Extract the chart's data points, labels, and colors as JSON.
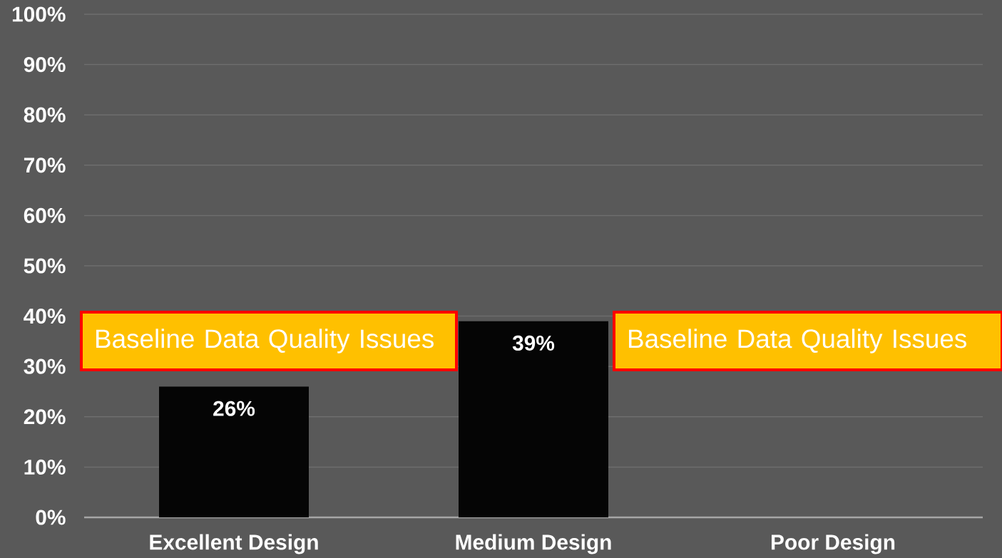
{
  "chart_data": {
    "type": "bar",
    "categories": [
      "Excellent Design",
      "Medium Design",
      "Poor Design"
    ],
    "values": [
      26,
      39,
      null
    ],
    "color": "#050505",
    "value_labels": [
      "26%",
      "39%",
      null
    ],
    "ylim": [
      0,
      100
    ],
    "yticks": [
      {
        "value": 0,
        "label": "0%"
      },
      {
        "value": 10,
        "label": "10%"
      },
      {
        "value": 20,
        "label": "20%"
      },
      {
        "value": 30,
        "label": "30%"
      },
      {
        "value": 40,
        "label": "40%"
      },
      {
        "value": 50,
        "label": "50%"
      },
      {
        "value": 60,
        "label": "60%"
      },
      {
        "value": 70,
        "label": "70%"
      },
      {
        "value": 80,
        "label": "80%"
      },
      {
        "value": 90,
        "label": "90%"
      },
      {
        "value": 100,
        "label": "100%"
      }
    ],
    "grid": "y",
    "annotations": [
      "Baseline Data Quality Issues",
      "Baseline Data Quality Issues"
    ]
  }
}
